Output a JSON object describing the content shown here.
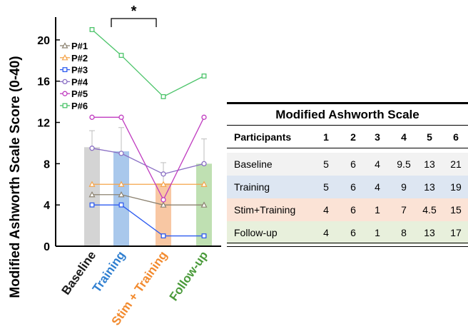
{
  "chart_data": {
    "type": "bar",
    "ylabel": "Modified Ashworth Scale Score (0-40)",
    "ylim": [
      0,
      22
    ],
    "yticks": [
      0,
      4,
      8,
      12,
      16,
      20
    ],
    "categories": [
      "Baseline",
      "Training",
      "Stim + Training",
      "Follow-up"
    ],
    "category_colors": [
      "#1a1a1a",
      "#2f7fd0",
      "#f28a2e",
      "#4a9a3a"
    ],
    "bars": {
      "values": [
        9.6,
        9.2,
        6.1,
        8.0
      ],
      "errors": [
        1.6,
        2.3,
        2.0,
        2.4
      ],
      "colors": [
        "#d4d4d4",
        "#a9c8ec",
        "#f8c7a3",
        "#bfe0b2"
      ]
    },
    "series": [
      {
        "name": "P#1",
        "values": [
          5,
          5,
          4,
          4
        ],
        "color": "#8c8270",
        "marker": "triangle"
      },
      {
        "name": "P#2",
        "values": [
          6,
          6,
          6,
          6
        ],
        "color": "#f5a44a",
        "marker": "triangle"
      },
      {
        "name": "P#3",
        "values": [
          4,
          4,
          1,
          1
        ],
        "color": "#2e5cf0",
        "marker": "square"
      },
      {
        "name": "P#4",
        "values": [
          9.5,
          9,
          7,
          8
        ],
        "color": "#8a6fc4",
        "marker": "circle"
      },
      {
        "name": "P#5",
        "values": [
          12.5,
          12.5,
          4.5,
          12.5
        ],
        "color": "#c03cc0",
        "marker": "circle"
      },
      {
        "name": "P#6",
        "values": [
          21,
          18.5,
          14.5,
          16.5
        ],
        "color": "#4cc46a",
        "marker": "square"
      }
    ],
    "significance": {
      "from": "Training",
      "to": "Stim + Training",
      "label": "*"
    },
    "legend_position": "top-left",
    "grid": false
  },
  "table": {
    "title": "Modified Ashworth Scale",
    "header": [
      "Participants",
      "1",
      "2",
      "3",
      "4",
      "5",
      "6"
    ],
    "rows": [
      {
        "label": "Baseline",
        "values": [
          "5",
          "6",
          "4",
          "9.5",
          "13",
          "21"
        ],
        "bg": "#f2f2f2"
      },
      {
        "label": "Training",
        "values": [
          "5",
          "6",
          "4",
          "9",
          "13",
          "19"
        ],
        "bg": "#dde6f2"
      },
      {
        "label": "Stim+Training",
        "values": [
          "4",
          "6",
          "1",
          "7",
          "4.5",
          "15"
        ],
        "bg": "#fbe3d6"
      },
      {
        "label": "Follow-up",
        "values": [
          "4",
          "6",
          "1",
          "8",
          "13",
          "17"
        ],
        "bg": "#e8f0dc"
      }
    ]
  }
}
